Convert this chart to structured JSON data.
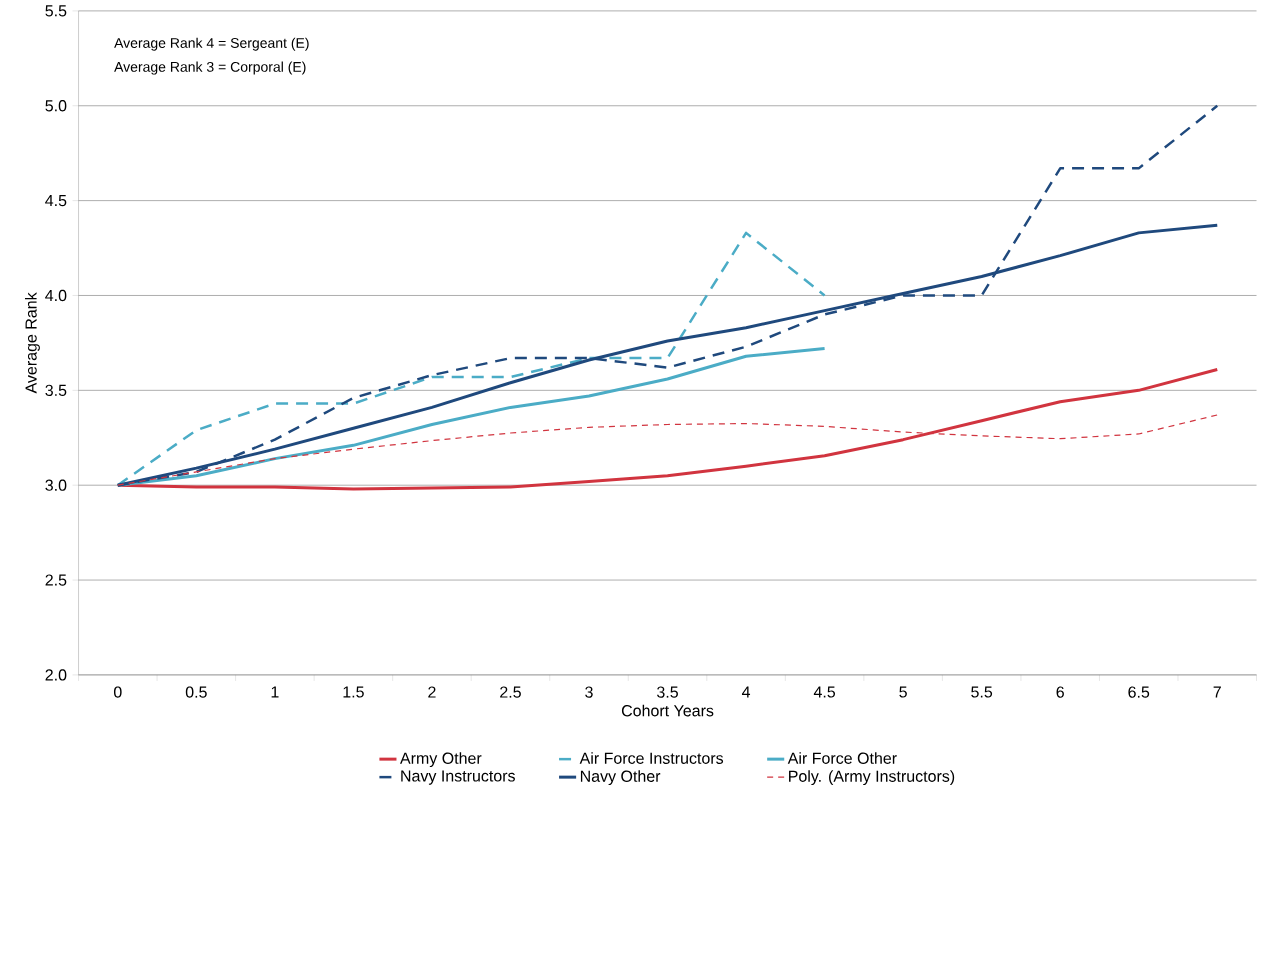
{
  "chart_data": {
    "type": "line",
    "xlabel": "Cohort Years",
    "ylabel": "Average Rank",
    "annotations": [
      "Average Rank 4 = Sergeant (E)",
      "Average Rank 3 = Corporal (E)"
    ],
    "categories": [
      "0",
      "0.5",
      "1",
      "1.5",
      "2",
      "2.5",
      "3",
      "3.5",
      "4",
      "4.5",
      "5",
      "5.5",
      "6",
      "6.5",
      "7"
    ],
    "ylim": [
      2,
      5.5
    ],
    "yticks": [
      {
        "value": 2,
        "label": "2.0"
      },
      {
        "value": 2.5,
        "label": "2.5"
      },
      {
        "value": 3,
        "label": "3.0"
      },
      {
        "value": 3.5,
        "label": "3.5"
      },
      {
        "value": 4,
        "label": "4.0"
      },
      {
        "value": 4.5,
        "label": "4.5"
      },
      {
        "value": 5,
        "label": "5.0"
      },
      {
        "value": 5.5,
        "label": "5.5"
      }
    ],
    "grid": "y",
    "legend": "bottom",
    "marker": "none",
    "series": [
      {
        "name": "Army Other",
        "color": "#d1343f",
        "line_style": "solid",
        "values": [
          3.0,
          2.99,
          2.99,
          2.98,
          2.985,
          2.99,
          3.02,
          3.05,
          3.1,
          3.155,
          3.24,
          3.34,
          3.44,
          3.5,
          3.61
        ]
      },
      {
        "name": "Air Force Instructors",
        "color": "#4bacc6",
        "line_style": "dashed",
        "values": [
          3.0,
          3.29,
          3.43,
          3.43,
          3.57,
          3.57,
          3.67,
          3.67,
          4.33,
          4.0,
          null,
          null,
          null,
          null,
          null
        ]
      },
      {
        "name": "Air Force Other",
        "color": "#4bacc6",
        "line_style": "solid",
        "values": [
          3.0,
          3.05,
          3.14,
          3.21,
          3.32,
          3.41,
          3.47,
          3.56,
          3.68,
          3.72,
          null,
          null,
          null,
          null,
          null
        ]
      },
      {
        "name": "Navy Instructors",
        "color": "#1f497d",
        "line_style": "dashed",
        "values": [
          3.0,
          3.07,
          3.24,
          3.46,
          3.58,
          3.67,
          3.67,
          3.62,
          3.73,
          3.9,
          4.0,
          4.0,
          4.67,
          4.67,
          5.0
        ]
      },
      {
        "name": "Navy Other",
        "color": "#1f497d",
        "line_style": "solid",
        "values": [
          3.0,
          3.09,
          3.19,
          3.3,
          3.41,
          3.54,
          3.66,
          3.76,
          3.83,
          3.92,
          4.01,
          4.1,
          4.21,
          4.33,
          4.37
        ]
      },
      {
        "name": "Poly. (Army Instructors)",
        "color": "#d1343f",
        "line_style": "dotted",
        "values": [
          3.0,
          3.07,
          3.14,
          3.19,
          3.235,
          3.275,
          3.305,
          3.32,
          3.325,
          3.31,
          3.28,
          3.26,
          3.245,
          3.27,
          3.37
        ]
      }
    ]
  }
}
